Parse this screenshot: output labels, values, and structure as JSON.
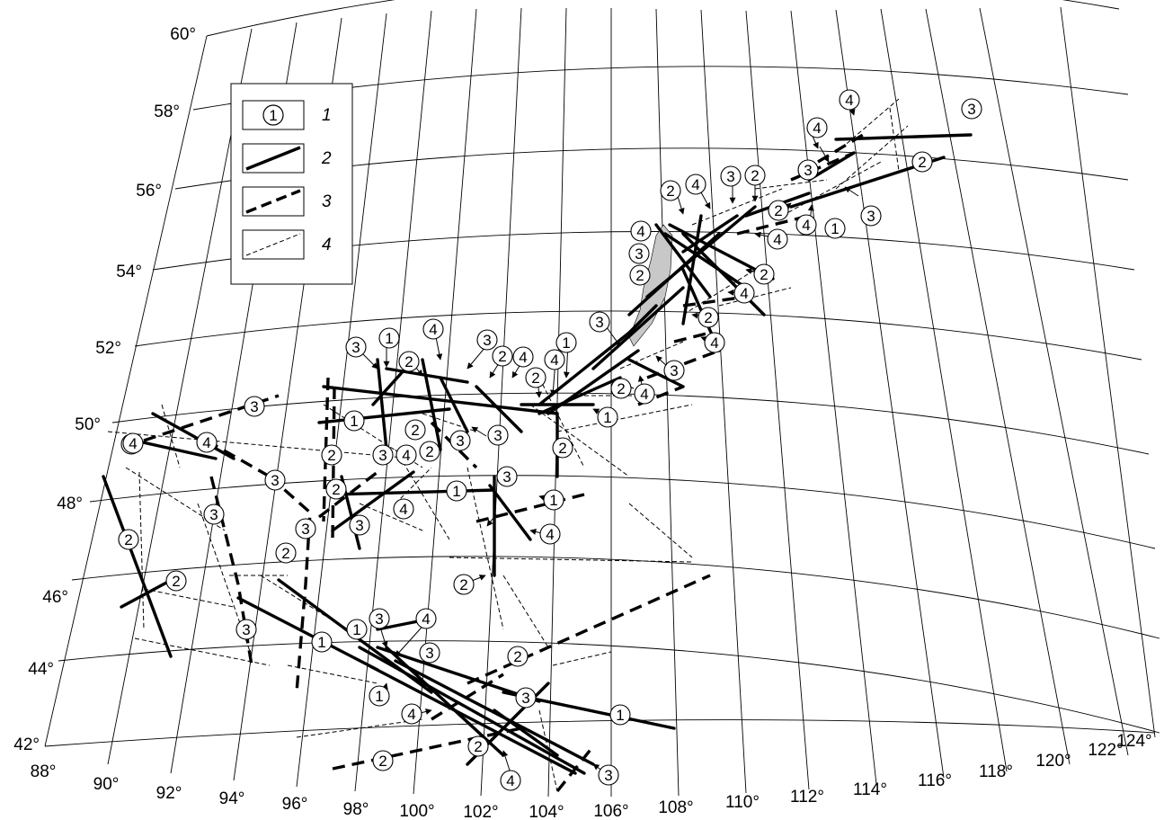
{
  "map": {
    "latitude_labels": [
      "60°",
      "58°",
      "56°",
      "54°",
      "52°",
      "50°",
      "48°",
      "46°",
      "44°",
      "42°"
    ],
    "longitude_labels": [
      "88°",
      "90°",
      "92°",
      "94°",
      "96°",
      "98°",
      "100°",
      "102°",
      "104°",
      "106°",
      "108°",
      "110°",
      "112°",
      "114°",
      "116°",
      "118°",
      "120°",
      "122°",
      "124°"
    ],
    "colors": {
      "ink": "#000000",
      "lake_fill": "#c8c8c8",
      "background": "#ffffff"
    }
  },
  "legend": {
    "entries": [
      {
        "index": "1",
        "symbol": "circled-number",
        "symbol_text": "1"
      },
      {
        "index": "2",
        "symbol": "thick-solid-line"
      },
      {
        "index": "3",
        "symbol": "thick-dashed-line"
      },
      {
        "index": "4",
        "symbol": "thin-dashed-line"
      }
    ]
  },
  "markers": [
    "1",
    "2",
    "3",
    "4",
    "1",
    "2",
    "3",
    "4",
    "1",
    "2",
    "3",
    "4",
    "1",
    "2",
    "3",
    "4",
    "1",
    "2",
    "3",
    "4",
    "1",
    "2",
    "3",
    "4",
    "1",
    "2",
    "3",
    "4",
    "1",
    "2",
    "3",
    "4"
  ]
}
